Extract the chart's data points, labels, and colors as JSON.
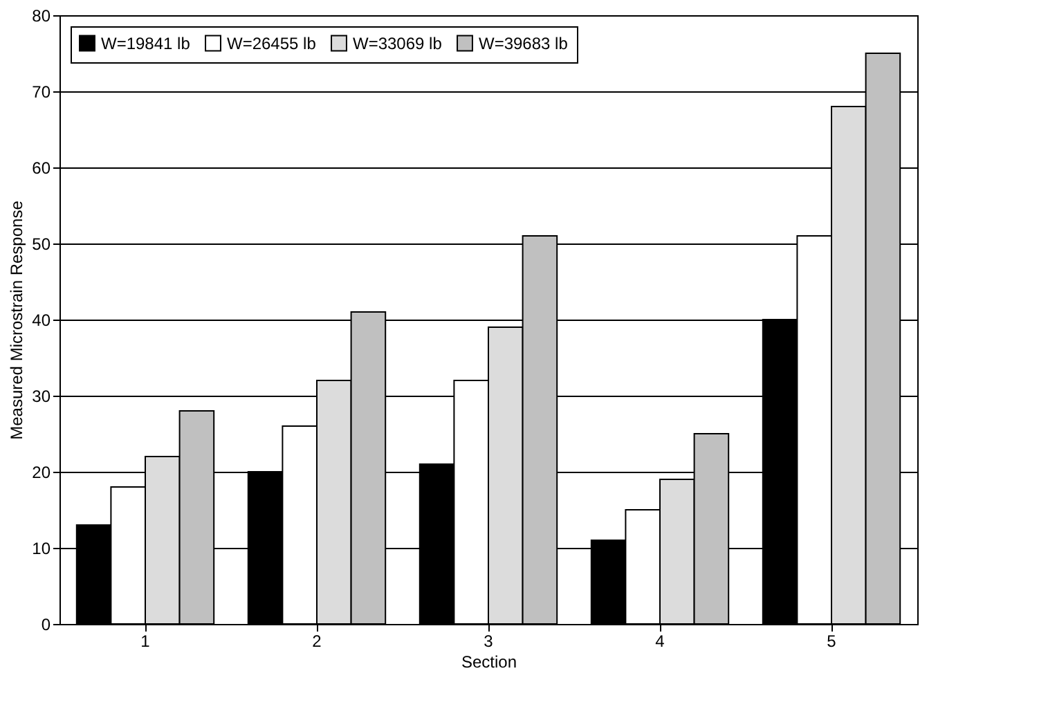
{
  "chart_data": {
    "type": "bar",
    "xlabel": "Section",
    "ylabel": "Measured Microstrain Response",
    "categories": [
      "1",
      "2",
      "3",
      "4",
      "5"
    ],
    "series": [
      {
        "name": "W=19841 lb",
        "color": "#000000",
        "values": [
          13,
          20,
          21,
          11,
          40
        ]
      },
      {
        "name": "W=26455 lb",
        "color": "#ffffff",
        "values": [
          18,
          26,
          32,
          15,
          51
        ]
      },
      {
        "name": "W=33069 lb",
        "color": "#dcdcdc",
        "values": [
          22,
          32,
          39,
          19,
          68
        ]
      },
      {
        "name": "W=39683 lb",
        "color": "#c0c0c0",
        "values": [
          28,
          41,
          51,
          25,
          75
        ]
      }
    ],
    "ylim": [
      0,
      80
    ],
    "yticks": [
      0,
      10,
      20,
      30,
      40,
      50,
      60,
      70,
      80
    ],
    "grid": "y",
    "legend": "top left"
  }
}
